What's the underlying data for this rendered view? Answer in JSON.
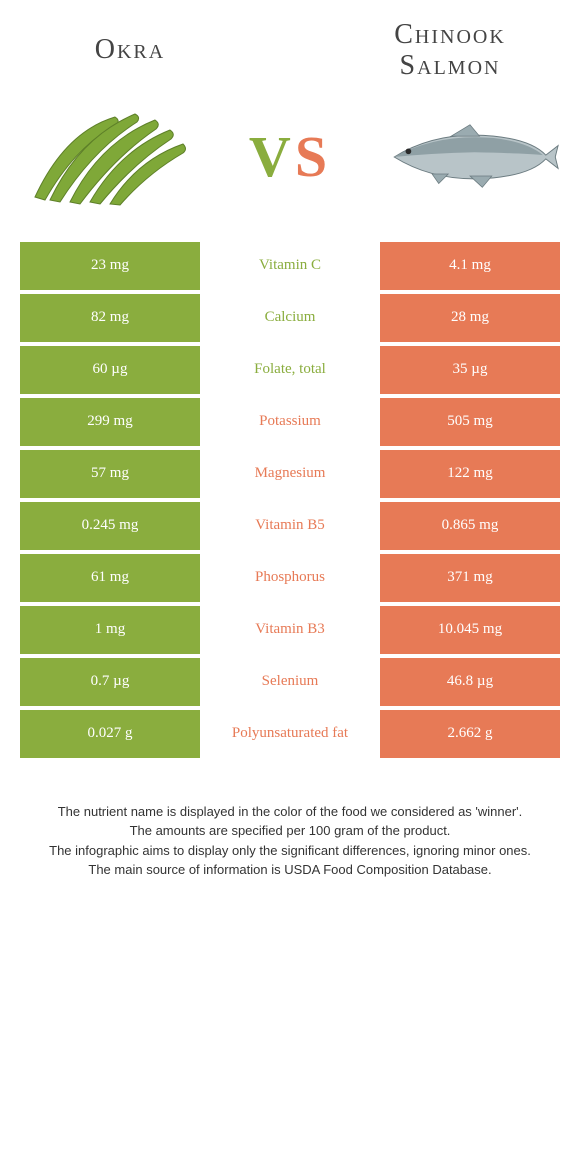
{
  "foods": {
    "left": {
      "name": "Okra",
      "color": "#8aad3e"
    },
    "right": {
      "name": "Chinook Salmon",
      "color": "#e77a56"
    }
  },
  "vs": {
    "v": "V",
    "s": "S"
  },
  "rows": [
    {
      "left": "23 mg",
      "nutrient": "Vitamin C",
      "right": "4.1 mg",
      "winner": "left"
    },
    {
      "left": "82 mg",
      "nutrient": "Calcium",
      "right": "28 mg",
      "winner": "left"
    },
    {
      "left": "60 µg",
      "nutrient": "Folate, total",
      "right": "35 µg",
      "winner": "left"
    },
    {
      "left": "299 mg",
      "nutrient": "Potassium",
      "right": "505 mg",
      "winner": "right"
    },
    {
      "left": "57 mg",
      "nutrient": "Magnesium",
      "right": "122 mg",
      "winner": "right"
    },
    {
      "left": "0.245 mg",
      "nutrient": "Vitamin B5",
      "right": "0.865 mg",
      "winner": "right"
    },
    {
      "left": "61 mg",
      "nutrient": "Phosphorus",
      "right": "371 mg",
      "winner": "right"
    },
    {
      "left": "1 mg",
      "nutrient": "Vitamin B3",
      "right": "10.045 mg",
      "winner": "right"
    },
    {
      "left": "0.7 µg",
      "nutrient": "Selenium",
      "right": "46.8 µg",
      "winner": "right"
    },
    {
      "left": "0.027 g",
      "nutrient": "Polyunsaturated fat",
      "right": "2.662 g",
      "winner": "right"
    }
  ],
  "footnotes": [
    "The nutrient name is displayed in the color of the food we considered as 'winner'.",
    "The amounts are specified per 100 gram of the product.",
    "The infographic aims to display only the significant differences, ignoring minor ones.",
    "The main source of information is USDA Food Composition Database."
  ]
}
